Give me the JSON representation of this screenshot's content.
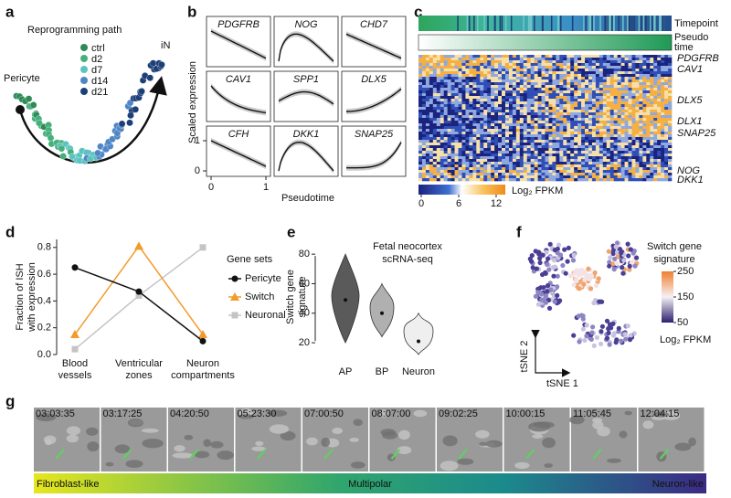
{
  "panels": {
    "a": {
      "letter": "a",
      "title": "Reprogramming path",
      "start_label": "Pericyte",
      "end_label": "iN",
      "legend": [
        {
          "name": "ctrl",
          "color": "#2e8b57"
        },
        {
          "name": "d2",
          "color": "#45b07c"
        },
        {
          "name": "d7",
          "color": "#5cc3c0"
        },
        {
          "name": "d14",
          "color": "#4f86c6"
        },
        {
          "name": "d21",
          "color": "#1d3f78"
        }
      ]
    },
    "b": {
      "letter": "b",
      "genes": [
        "PDGFRB",
        "NOG",
        "CHD7",
        "CAV1",
        "SPP1",
        "DLX5",
        "CFH",
        "DKK1",
        "SNAP25"
      ],
      "yticks": [
        0,
        1
      ],
      "xticks": [
        0,
        1
      ],
      "xlabel": "Pseudotime",
      "ylabel": "Scaled expression"
    },
    "c": {
      "letter": "c",
      "tracks": [
        "Timepoint",
        "Pseudo time"
      ],
      "genes": [
        "PDGFRB",
        "CAV1",
        "DLX5",
        "DLX1",
        "SNAP25",
        "NOG",
        "DKK1"
      ],
      "colorbar_ticks": [
        0,
        6,
        12
      ],
      "colorbar_label": "Log₂ FPKM"
    },
    "d": {
      "letter": "d",
      "type": "line",
      "ylabel": [
        "Fraction of ISH",
        "with expression"
      ],
      "categories": [
        "Blood vessels",
        "Ventricular zones",
        "Neuron compartments"
      ],
      "series": [
        {
          "name": "Pericyte",
          "color": "#111111",
          "marker": "circle",
          "values": [
            0.65,
            0.47,
            0.1
          ]
        },
        {
          "name": "Switch",
          "color": "#f39a2b",
          "marker": "triangle",
          "values": [
            0.15,
            0.81,
            0.15
          ]
        },
        {
          "name": "Neuronal",
          "color": "#c4c4c4",
          "marker": "square",
          "values": [
            0.04,
            0.44,
            0.8
          ]
        }
      ],
      "ylim": [
        0,
        0.86
      ],
      "yticks": [
        {
          "value": 0,
          "label": "0.0"
        },
        0.2,
        0.4,
        0.6,
        0.8
      ],
      "legend_title": "Gene sets"
    },
    "e": {
      "letter": "e",
      "type": "violin",
      "title": [
        "Fetal neocortex",
        "scRNA-seq"
      ],
      "ylabel": [
        "Switch gene",
        "signature"
      ],
      "categories": [
        "AP",
        "BP",
        "Neuron"
      ],
      "values": [
        49,
        40,
        21
      ],
      "colors": [
        "#5a5a5a",
        "#b0b0b0",
        "#efefef"
      ],
      "ylim": [
        12,
        90
      ],
      "yticks": [
        20,
        40,
        60,
        80
      ]
    },
    "f": {
      "letter": "f",
      "title": [
        "Switch gene",
        "signature"
      ],
      "colorbar_ticks": [
        250,
        150,
        50
      ],
      "colorbar_label": "Log₂ FPKM",
      "xlabel": "tSNE 1",
      "ylabel": "tSNE 2"
    },
    "g": {
      "letter": "g",
      "timestamps": [
        "03:03:35",
        "03:17:25",
        "04:20:50",
        "05:23:30",
        "07:00:50",
        "08:07:00",
        "09:02:25",
        "10:00:15",
        "11:05:45",
        "12:04:15"
      ],
      "stages": [
        "Fibroblast-like",
        "Multipolar",
        "Neuron-like"
      ]
    }
  }
}
